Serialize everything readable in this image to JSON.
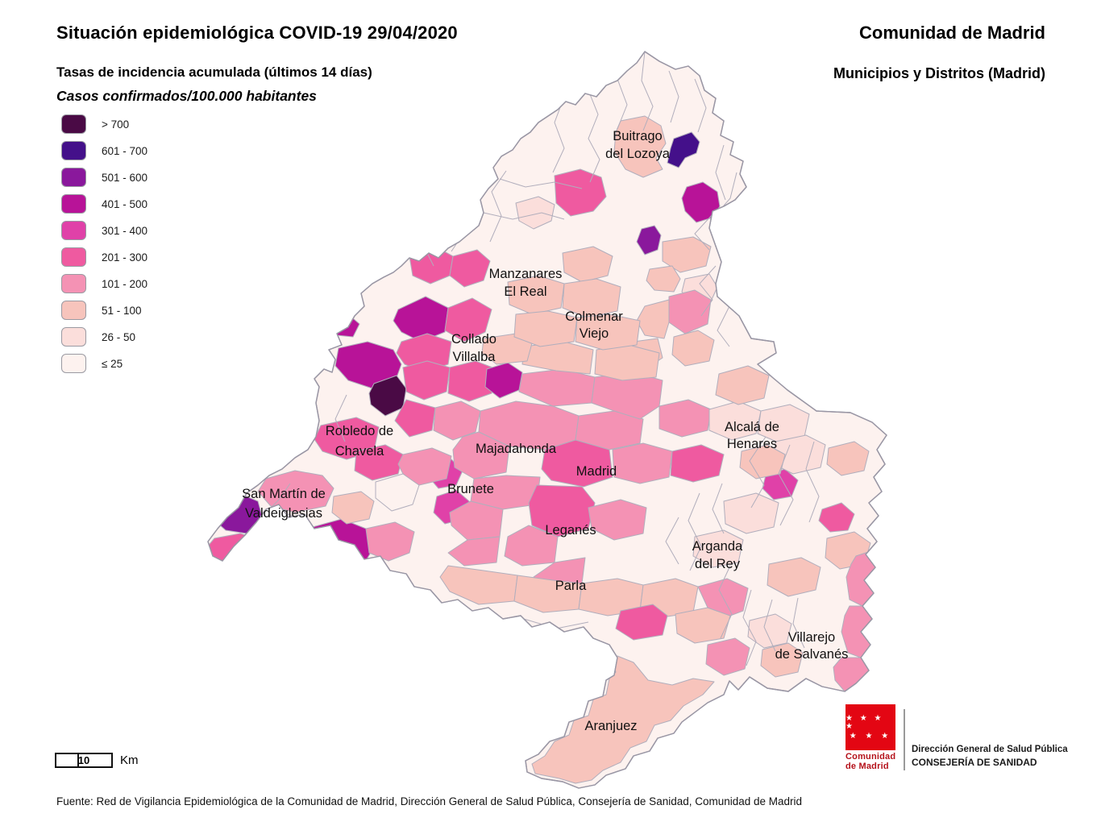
{
  "header": {
    "title": "Situación epidemiológica COVID-19  29/04/2020",
    "subtitle": "Tasas de incidencia acumulada (últimos 14 días)",
    "unit_line": "Casos confirmados/100.000 habitantes",
    "region_title": "Comunidad de Madrid",
    "region_subtitle": "Municipios y Distritos (Madrid)"
  },
  "legend": {
    "items": [
      {
        "label": "> 700",
        "color": "#4a0a45"
      },
      {
        "label": "601 - 700",
        "color": "#44108a"
      },
      {
        "label": "501 - 600",
        "color": "#8a189c"
      },
      {
        "label": "401 - 500",
        "color": "#b81398"
      },
      {
        "label": "301 - 400",
        "color": "#e041a8"
      },
      {
        "label": "201 - 300",
        "color": "#ef5aa0"
      },
      {
        "label": "101 - 200",
        "color": "#f492b4"
      },
      {
        "label": "51 - 100",
        "color": "#f7c4bc"
      },
      {
        "label": "26 - 50",
        "color": "#fbdedb"
      },
      {
        "label": "≤ 25",
        "color": "#fdf2ef"
      }
    ]
  },
  "map": {
    "border_color": "#b1aebc",
    "outline_color": "#9a97a5",
    "labels": [
      {
        "line1": "Buitrago",
        "line2": "del Lozoya"
      },
      {
        "line1": "Manzanares",
        "line2": "El Real"
      },
      {
        "line1": "Colmenar",
        "line2": "Viejo"
      },
      {
        "line1": "Collado",
        "line2": "Villalba"
      },
      {
        "line1": "Robledo de",
        "line2": "Chavela"
      },
      {
        "line1": "Majadahonda"
      },
      {
        "line1": "Madrid"
      },
      {
        "line1": "Alcalá de",
        "line2": "Henares"
      },
      {
        "line1": "Brunete"
      },
      {
        "line1": "San Martín de",
        "line2": "Valdeiglesias"
      },
      {
        "line1": "Leganés"
      },
      {
        "line1": "Arganda",
        "line2": "del Rey"
      },
      {
        "line1": "Parla"
      },
      {
        "line1": "Villarejo",
        "line2": "de Salvanés"
      },
      {
        "line1": "Aranjuez"
      }
    ]
  },
  "scalebar": {
    "value": "10",
    "unit": "Km"
  },
  "logo": {
    "flag_color": "#e30613",
    "stars_row1": "★ ★ ★ ★",
    "stars_row2": "★ ★ ★",
    "org_line1": "Comunidad",
    "org_line2": "de Madrid",
    "dept_line1": "Dirección General de Salud Pública",
    "dept_line2": "CONSEJERÍA DE SANIDAD"
  },
  "footer": {
    "source": "Fuente: Red de Vigilancia Epidemiológica de la Comunidad de Madrid, Dirección General de Salud Pública, Consejería de Sanidad, Comunidad de Madrid"
  }
}
